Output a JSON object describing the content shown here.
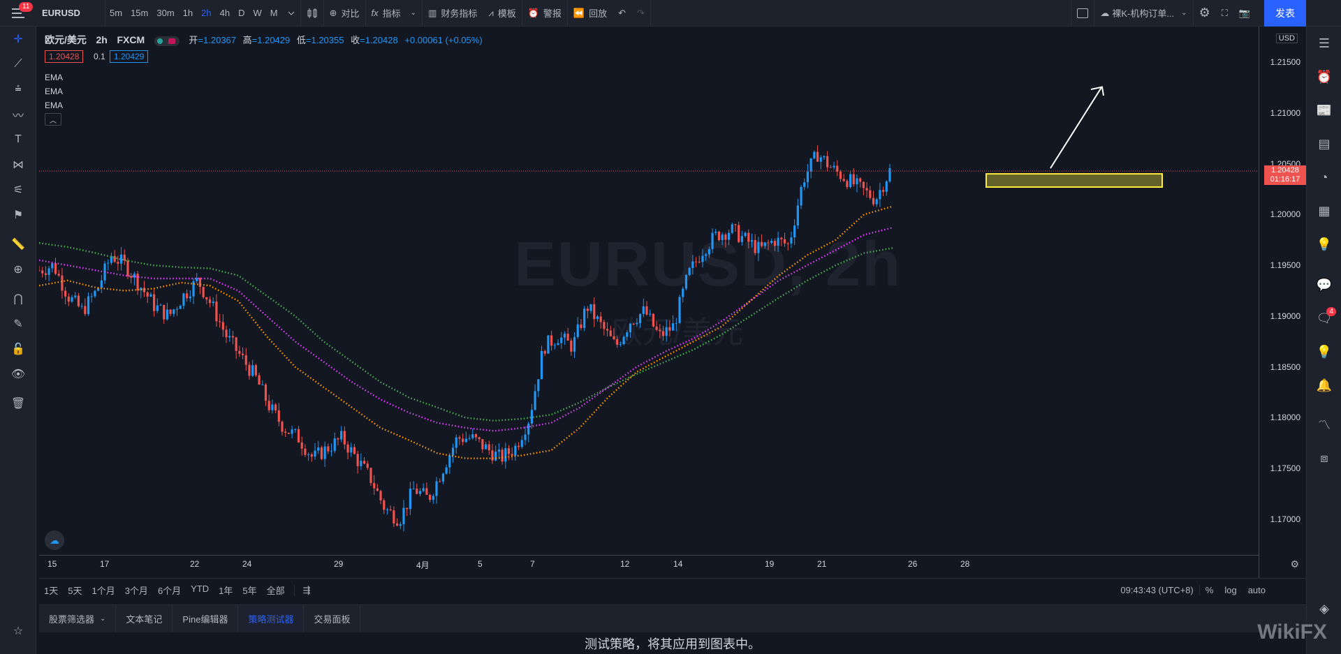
{
  "topbar": {
    "menu_badge": "11",
    "symbol": "EURUSD",
    "intervals": [
      "5m",
      "15m",
      "30m",
      "1h",
      "2h",
      "4h",
      "D",
      "W",
      "M"
    ],
    "active_interval": "2h",
    "compare_label": "对比",
    "indicators_label": "指标",
    "financials_label": "财务指标",
    "templates_label": "模板",
    "alert_label": "警报",
    "replay_label": "回放",
    "layout_name": "裸K-机构订单...",
    "publish_label": "发表"
  },
  "legend": {
    "symbol_name": "欧元/美元",
    "interval": "2h",
    "exchange": "FXCM",
    "open_label": "开",
    "open": "=1.20367",
    "high_label": "高",
    "high": "=1.20429",
    "low_label": "低",
    "low": "=1.20355",
    "close_label": "收",
    "close": "=1.20428",
    "change": "+0.00061 (+0.05%)",
    "bid": "1.20428",
    "spread": "0.1",
    "ask": "1.20429",
    "ema_labels": [
      "EMA",
      "EMA",
      "EMA"
    ]
  },
  "watermark": {
    "line1": "EURUSD, 2h",
    "line2": "欧元/美元"
  },
  "price_axis": {
    "currency": "USD",
    "ticks": [
      "1.21500",
      "1.21000",
      "1.20500",
      "1.20000",
      "1.19500",
      "1.19000",
      "1.18500",
      "1.18000",
      "1.17500",
      "1.17000"
    ],
    "current_price": "1.20428",
    "countdown": "01:16:17"
  },
  "time_axis": {
    "ticks": [
      "15",
      "17",
      "22",
      "24",
      "29",
      "4月",
      "5",
      "7",
      "12",
      "14",
      "19",
      "21",
      "26",
      "28"
    ]
  },
  "range_bar": {
    "ranges": [
      "1天",
      "5天",
      "1个月",
      "3个月",
      "6个月",
      "YTD",
      "1年",
      "5年",
      "全部"
    ],
    "clock": "09:43:43 (UTC+8)",
    "percent": "%",
    "log": "log",
    "auto": "auto"
  },
  "bottom_tabs": {
    "tabs": [
      "股票筛选器",
      "文本笔记",
      "Pine编辑器",
      "策略测试器",
      "交易面板"
    ],
    "active": "策略测试器",
    "message": "测试策略，将其应用到图表中。"
  },
  "right_toolbar": {
    "chat_badge": "4"
  },
  "brand": "WikiFX",
  "colors": {
    "up": "#2196f3",
    "down": "#ef5350",
    "ema_fast": "#ff9800",
    "ema_mid": "#e040fb",
    "ema_slow": "#4caf50",
    "zone": "#ffeb3b",
    "accent": "#2962ff"
  },
  "chart_data": {
    "type": "candlestick",
    "symbol": "EURUSD",
    "interval": "2h",
    "ylim": [
      1.1665,
      1.2185
    ],
    "x_ticks": [
      "15",
      "17",
      "22",
      "24",
      "29",
      "4月",
      "5",
      "7",
      "12",
      "14",
      "19",
      "21",
      "26",
      "28"
    ],
    "close_path": [
      1.1945,
      1.195,
      1.192,
      1.1905,
      1.1925,
      1.196,
      1.195,
      1.193,
      1.191,
      1.19,
      1.192,
      1.1935,
      1.191,
      1.188,
      1.186,
      1.184,
      1.181,
      1.179,
      1.178,
      1.176,
      1.177,
      1.178,
      1.176,
      1.174,
      1.171,
      1.17,
      1.173,
      1.172,
      1.175,
      1.178,
      1.178,
      1.177,
      1.176,
      1.177,
      1.18,
      1.187,
      1.188,
      1.187,
      1.191,
      1.189,
      1.187,
      1.1895,
      1.1905,
      1.188,
      1.189,
      1.194,
      1.1965,
      1.198,
      1.1985,
      1.1975,
      1.1965,
      1.1975,
      1.197,
      1.2035,
      1.206,
      1.2045,
      1.2035,
      1.2025,
      1.2015,
      1.2043
    ],
    "ema_fast": [
      1.193,
      1.1935,
      1.1928,
      1.1925,
      1.1927,
      1.1933,
      1.193,
      1.1915,
      1.188,
      1.185,
      1.183,
      1.181,
      1.179,
      1.1778,
      1.1765,
      1.176,
      1.176,
      1.1763,
      1.1768,
      1.179,
      1.182,
      1.1845,
      1.186,
      1.1875,
      1.189,
      1.1915,
      1.194,
      1.196,
      1.1975,
      1.2,
      1.2008
    ],
    "ema_mid": [
      1.1955,
      1.195,
      1.1945,
      1.194,
      1.1937,
      1.1937,
      1.1937,
      1.1925,
      1.19,
      1.1875,
      1.1855,
      1.1835,
      1.1818,
      1.1805,
      1.1795,
      1.179,
      1.1787,
      1.179,
      1.1795,
      1.181,
      1.183,
      1.185,
      1.1865,
      1.1878,
      1.1895,
      1.1915,
      1.1935,
      1.195,
      1.1965,
      1.198,
      1.1987
    ],
    "ema_slow": [
      1.1972,
      1.1968,
      1.1962,
      1.1955,
      1.195,
      1.1948,
      1.1947,
      1.194,
      1.192,
      1.19,
      1.1875,
      1.1855,
      1.1835,
      1.182,
      1.181,
      1.18,
      1.1797,
      1.1799,
      1.1803,
      1.1815,
      1.183,
      1.1843,
      1.1855,
      1.1867,
      1.1882,
      1.19,
      1.1918,
      1.1935,
      1.195,
      1.1962,
      1.1967
    ],
    "current_price": 1.20428,
    "zone": [
      1.2027,
      1.204
    ]
  }
}
